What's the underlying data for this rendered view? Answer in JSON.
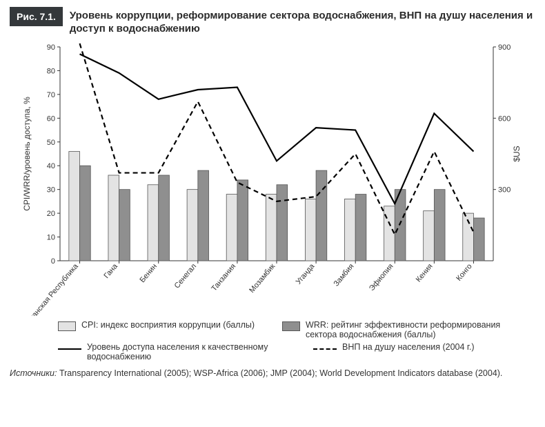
{
  "figure": {
    "badge": "Рис. 7.1.",
    "title": "Уровень коррупции, реформирование сектора водоснабжения, ВНП на душу населения и доступ к водоснабжению"
  },
  "chart": {
    "type": "bar+line",
    "categories": [
      "Южно-Африканская Республика",
      "Гана",
      "Бенин",
      "Сенегал",
      "Танзания",
      "Мозамбик",
      "Уганда",
      "Замбия",
      "Эфиопия",
      "Кения",
      "Конго"
    ],
    "cpi": [
      46,
      36,
      32,
      30,
      28,
      28,
      26,
      26,
      23,
      21,
      20
    ],
    "wrr": [
      40,
      30,
      36,
      38,
      34,
      32,
      38,
      28,
      30,
      30,
      18
    ],
    "access": [
      87,
      79,
      68,
      72,
      73,
      42,
      56,
      55,
      24,
      62,
      46
    ],
    "gnp": [
      null,
      370,
      370,
      670,
      330,
      250,
      270,
      450,
      110,
      460,
      120
    ],
    "y_left": {
      "min": 0,
      "max": 90,
      "step": 10,
      "label": "CPI/WRR/уровень доступа, %"
    },
    "y_right": {
      "ticks": [
        300,
        600,
        900
      ],
      "label": "$US"
    },
    "colors": {
      "cpi_bar": "#e3e3e3",
      "wrr_bar": "#8f8f8f",
      "bar_stroke": "#555555",
      "line_access": "#000000",
      "line_gnp": "#000000",
      "axis": "#333333",
      "bg": "#ffffff"
    },
    "bar_group_width": 0.55,
    "line_width": 2.2
  },
  "legend": {
    "cpi": "CPI: индекс восприятия коррупции (баллы)",
    "wrr": "WRR: рейтинг эффективности реформирования сектора водоснабжения (баллы)",
    "access": "Уровень доступа населения к качественному водоснабжению",
    "gnp": "ВНП на душу населения (2004 г.)"
  },
  "source": {
    "prefix": "Источники:",
    "text": "Transparency International (2005); WSP-Africa (2006); JMP (2004); World Development Indicators database (2004)."
  }
}
